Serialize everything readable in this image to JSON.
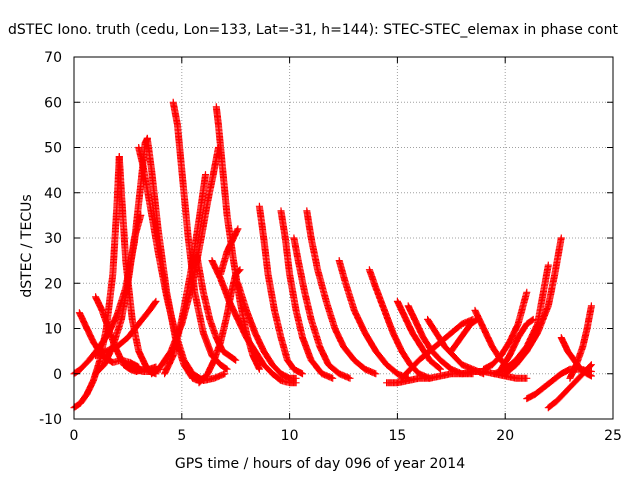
{
  "chart_data": {
    "type": "scatter",
    "title": "dSTEC Iono. truth (cedu, Lon=133, Lat=-31, h=144): STEC-STEC_elemax in phase cont",
    "xlabel": "GPS time / hours of day 096 of year 2014",
    "ylabel": "dSTEC  / TECUs",
    "xlim": [
      0,
      25
    ],
    "ylim": [
      -10,
      70
    ],
    "xticks": [
      0,
      5,
      10,
      15,
      20,
      25
    ],
    "yticks": [
      -10,
      0,
      10,
      20,
      30,
      40,
      50,
      60,
      70
    ],
    "grid": true,
    "legend": "none",
    "marker": "plus",
    "color": "#ff0000",
    "series": [
      {
        "x": [
          0.0,
          0.3,
          0.6,
          0.9,
          1.2,
          1.5,
          1.8,
          2.0,
          2.1
        ],
        "y": [
          -7.5,
          -6.5,
          -4.5,
          -1.5,
          3,
          10,
          22,
          38,
          48
        ]
      },
      {
        "x": [
          2.1,
          2.2,
          2.4,
          2.7,
          3.0,
          3.3,
          3.5,
          3.8
        ],
        "y": [
          48,
          40,
          25,
          12,
          5,
          2,
          0.5,
          0
        ]
      },
      {
        "x": [
          0.0,
          0.3,
          0.7,
          1.2,
          1.6,
          2.0,
          2.4,
          2.8,
          3.1,
          3.3,
          3.4
        ],
        "y": [
          0,
          1,
          3,
          6,
          9,
          13,
          19,
          29,
          42,
          51,
          52
        ]
      },
      {
        "x": [
          3.4,
          3.6,
          3.9,
          4.3,
          4.7,
          5.1,
          5.5,
          5.8,
          6.0
        ],
        "y": [
          52,
          45,
          32,
          18,
          8,
          2,
          -1,
          -1.5,
          -1
        ]
      },
      {
        "x": [
          0.25,
          0.5,
          0.9,
          1.3,
          1.8,
          2.2,
          2.6,
          3.0
        ],
        "y": [
          13.5,
          11,
          7,
          4,
          2.5,
          3,
          2.5,
          1.5
        ]
      },
      {
        "x": [
          1.0,
          1.3,
          1.6,
          1.9,
          2.2,
          2.5,
          2.8,
          3.2,
          3.6,
          4.0
        ],
        "y": [
          17,
          14,
          10,
          6,
          3,
          1.5,
          1,
          0.5,
          0.5,
          1
        ]
      },
      {
        "x": [
          1.0,
          1.4,
          1.8,
          2.2,
          2.5,
          2.8,
          3.1
        ],
        "y": [
          0,
          2,
          6,
          12,
          20,
          30,
          35
        ]
      },
      {
        "x": [
          1.0,
          1.5,
          2.0,
          2.5,
          3.0,
          3.5,
          3.8
        ],
        "y": [
          4,
          5,
          6,
          8,
          11,
          14,
          16
        ]
      },
      {
        "x": [
          2.3,
          2.6,
          2.9,
          3.2,
          3.5,
          3.8
        ],
        "y": [
          2,
          1,
          0.5,
          1,
          1,
          1.5
        ]
      },
      {
        "x": [
          3.0,
          3.2,
          3.5,
          3.9,
          4.3,
          4.7,
          5.1,
          5.5,
          6.0,
          6.5,
          7.0
        ],
        "y": [
          50,
          46,
          38,
          27,
          17,
          9,
          3,
          0,
          -1.5,
          -1,
          0
        ]
      },
      {
        "x": [
          4.6,
          4.8,
          5.0,
          5.3,
          5.6,
          6.0,
          6.4,
          6.8,
          7.1
        ],
        "y": [
          60,
          55,
          45,
          30,
          18,
          9,
          4,
          2,
          1
        ]
      },
      {
        "x": [
          3.6,
          4.0,
          4.5,
          5.0,
          5.5,
          5.9,
          6.2,
          6.5,
          6.7
        ],
        "y": [
          0,
          1.5,
          5,
          11,
          20,
          30,
          38,
          45,
          50
        ]
      },
      {
        "x": [
          4.2,
          4.6,
          5.0,
          5.4,
          5.8,
          6.1
        ],
        "y": [
          0,
          4,
          12,
          22,
          34,
          44
        ]
      },
      {
        "x": [
          5.7,
          6.0,
          6.3,
          6.6,
          6.9,
          7.2,
          7.5
        ],
        "y": [
          26,
          18,
          12,
          8,
          5,
          4,
          3
        ]
      },
      {
        "x": [
          6.6,
          6.7,
          6.9,
          7.1,
          7.4,
          7.7,
          8.0,
          8.3,
          8.6
        ],
        "y": [
          59,
          55,
          45,
          35,
          25,
          16,
          9,
          4,
          1
        ]
      },
      {
        "x": [
          5.8,
          6.2,
          6.5,
          6.8,
          7.1,
          7.3,
          7.5,
          7.7
        ],
        "y": [
          -2,
          0,
          3,
          7,
          13,
          18,
          22,
          23
        ]
      },
      {
        "x": [
          6.4,
          6.8,
          7.2,
          7.6,
          8.0,
          8.4,
          8.8,
          9.2,
          9.6,
          10.0,
          10.3
        ],
        "y": [
          25,
          21,
          16,
          12,
          8,
          5,
          2,
          0,
          -1.5,
          -2,
          -2
        ]
      },
      {
        "x": [
          6.8,
          7.1,
          7.4,
          7.6
        ],
        "y": [
          22,
          27,
          30,
          32
        ]
      },
      {
        "x": [
          8.6,
          8.8,
          9.0,
          9.3,
          9.6,
          9.9,
          10.2,
          10.6
        ],
        "y": [
          37,
          30,
          22,
          14,
          8,
          3,
          1,
          0
        ]
      },
      {
        "x": [
          7.6,
          8.0,
          8.4,
          8.8,
          9.2,
          9.6,
          10.0,
          10.3
        ],
        "y": [
          20,
          14,
          9,
          5,
          2,
          0,
          -1,
          -1
        ]
      },
      {
        "x": [
          9.6,
          9.8,
          10.0,
          10.3,
          10.6,
          11.0,
          11.5,
          12.0
        ],
        "y": [
          36,
          30,
          22,
          14,
          8,
          3,
          0,
          -1
        ]
      },
      {
        "x": [
          10.2,
          10.4,
          10.7,
          11.0,
          11.4,
          11.8,
          12.3,
          12.8
        ],
        "y": [
          30,
          25,
          18,
          12,
          6,
          2,
          0,
          -1
        ]
      },
      {
        "x": [
          10.8,
          11.0,
          11.3,
          11.7,
          12.1,
          12.5,
          13.0,
          13.5,
          14.0
        ],
        "y": [
          36,
          30,
          23,
          16,
          10,
          6,
          3,
          1,
          0
        ]
      },
      {
        "x": [
          12.3,
          12.6,
          13.0,
          13.5,
          14.0,
          14.5,
          15.0,
          15.5
        ],
        "y": [
          25,
          20,
          14,
          9,
          5,
          2,
          0,
          -1
        ]
      },
      {
        "x": [
          13.7,
          14.0,
          14.4,
          14.8,
          15.2,
          15.6,
          16.0,
          16.5
        ],
        "y": [
          23,
          19,
          14,
          9,
          5,
          2,
          0,
          -1
        ]
      },
      {
        "x": [
          15.0,
          15.3,
          15.7,
          16.1,
          16.5,
          17.0
        ],
        "y": [
          16,
          13,
          9,
          6,
          3,
          1
        ]
      },
      {
        "x": [
          15.5,
          15.8,
          16.2,
          16.6,
          17.0,
          17.5,
          18.0,
          18.5
        ],
        "y": [
          15,
          12,
          8,
          5,
          3,
          1,
          0,
          0
        ]
      },
      {
        "x": [
          16.4,
          16.8,
          17.2,
          17.6,
          18.0,
          18.5,
          19.0
        ],
        "y": [
          12,
          9,
          6,
          4,
          2,
          1,
          0
        ]
      },
      {
        "x": [
          18.6,
          19.0,
          19.4,
          19.8,
          20.2
        ],
        "y": [
          14,
          10,
          6,
          3,
          1
        ]
      },
      {
        "x": [
          14.5,
          15.0,
          15.5,
          16.0,
          16.5,
          17.0,
          17.5,
          18.0,
          18.5,
          19.0,
          19.5,
          20.0,
          20.5,
          21.0
        ],
        "y": [
          -2,
          -2,
          -1.5,
          -1,
          -1,
          -0.5,
          0,
          0,
          0.5,
          0.5,
          0,
          -0.5,
          -1,
          -1
        ]
      },
      {
        "x": [
          15.2,
          15.6,
          16.0,
          16.5,
          17.0,
          17.5,
          18.0,
          18.5
        ],
        "y": [
          -1,
          1,
          3,
          5,
          7,
          9,
          11,
          12
        ]
      },
      {
        "x": [
          17.5,
          17.8,
          18.1,
          18.4,
          18.7
        ],
        "y": [
          5,
          7,
          9,
          11,
          12
        ]
      },
      {
        "x": [
          19.0,
          19.4,
          19.8,
          20.2,
          20.6,
          21.0
        ],
        "y": [
          1,
          2,
          4,
          7,
          11,
          18
        ]
      },
      {
        "x": [
          19.5,
          20.0,
          20.5,
          21.0,
          21.5,
          22.0
        ],
        "y": [
          0,
          1,
          3,
          6,
          11,
          24
        ]
      },
      {
        "x": [
          20.0,
          20.5,
          21.0,
          21.5,
          22.0,
          22.3,
          22.6
        ],
        "y": [
          0,
          2,
          5,
          9,
          15,
          22,
          30
        ]
      },
      {
        "x": [
          19.8,
          20.2,
          20.6,
          21.0,
          21.3
        ],
        "y": [
          1,
          4,
          8,
          11,
          12
        ]
      },
      {
        "x": [
          21.0,
          21.4,
          21.8,
          22.2,
          22.6,
          23.0,
          23.5,
          24.0
        ],
        "y": [
          -5.5,
          -4.5,
          -3,
          -1.5,
          0,
          1,
          1,
          0.5
        ]
      },
      {
        "x": [
          22.0,
          22.4,
          22.8,
          23.2,
          23.6,
          24.0
        ],
        "y": [
          -7.5,
          -6,
          -4,
          -2,
          0,
          2
        ]
      },
      {
        "x": [
          22.6,
          22.9,
          23.2,
          23.5,
          23.8,
          24.0
        ],
        "y": [
          8,
          5,
          3,
          1,
          0,
          -0.5
        ]
      },
      {
        "x": [
          23.0,
          23.3,
          23.6,
          23.8,
          24.0
        ],
        "y": [
          -1,
          2,
          6,
          10,
          15
        ]
      }
    ]
  }
}
